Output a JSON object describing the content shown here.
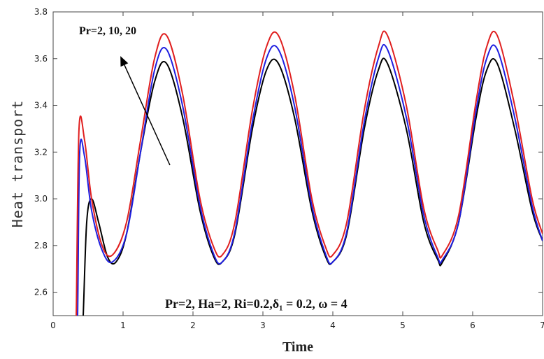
{
  "chart_data": {
    "type": "line",
    "xlabel": "Time",
    "ylabel": "Heat transport",
    "xlim": [
      0,
      7
    ],
    "ylim": [
      2.5,
      3.8
    ],
    "xticks": [
      0,
      1,
      2,
      3,
      4,
      5,
      6,
      7
    ],
    "yticks": [
      2.6,
      2.8,
      3.0,
      3.2,
      3.4,
      3.6,
      3.8
    ],
    "grid": false,
    "annotations": {
      "arrow_label": "Pr=2, 10, 20",
      "params_label": "Pr=2, Ha=2, Ri=0.2,δ₁ = 0.2, ω = 4"
    },
    "series": [
      {
        "color": "#000000",
        "x": [
          0.43,
          0.48,
          0.55,
          0.65,
          0.78,
          0.9,
          1.05,
          1.25,
          1.45,
          1.62,
          1.85,
          2.1,
          2.3,
          2.42,
          2.6,
          2.85,
          3.05,
          3.22,
          3.45,
          3.7,
          3.9,
          4.0,
          4.2,
          4.45,
          4.65,
          4.78,
          5.05,
          5.3,
          5.5,
          5.57,
          5.8,
          6.05,
          6.2,
          6.35,
          6.6,
          6.85,
          7.0
        ],
        "y": [
          2.5,
          2.9,
          3.0,
          2.9,
          2.75,
          2.73,
          2.85,
          3.2,
          3.5,
          3.58,
          3.35,
          2.95,
          2.75,
          2.73,
          2.85,
          3.3,
          3.55,
          3.58,
          3.35,
          2.95,
          2.75,
          2.73,
          2.85,
          3.3,
          3.55,
          3.58,
          3.3,
          2.9,
          2.74,
          2.73,
          2.9,
          3.35,
          3.55,
          3.58,
          3.3,
          2.95,
          2.82
        ]
      },
      {
        "color": "#1f1fe0",
        "x": [
          0.35,
          0.38,
          0.45,
          0.55,
          0.7,
          0.85,
          1.05,
          1.25,
          1.45,
          1.62,
          1.85,
          2.1,
          2.3,
          2.42,
          2.6,
          2.85,
          3.05,
          3.22,
          3.45,
          3.7,
          3.9,
          4.0,
          4.2,
          4.45,
          4.65,
          4.78,
          5.05,
          5.3,
          5.5,
          5.57,
          5.8,
          6.05,
          6.2,
          6.35,
          6.6,
          6.85,
          7.0
        ],
        "y": [
          2.5,
          3.2,
          3.18,
          2.95,
          2.78,
          2.73,
          2.85,
          3.2,
          3.55,
          3.64,
          3.4,
          2.97,
          2.76,
          2.73,
          2.86,
          3.33,
          3.6,
          3.64,
          3.4,
          2.97,
          2.76,
          2.73,
          2.86,
          3.33,
          3.6,
          3.64,
          3.35,
          2.93,
          2.75,
          2.74,
          2.9,
          3.38,
          3.6,
          3.64,
          3.35,
          2.97,
          2.82
        ]
      },
      {
        "color": "#e01f1f",
        "x": [
          0.33,
          0.37,
          0.45,
          0.55,
          0.7,
          0.85,
          1.05,
          1.25,
          1.45,
          1.62,
          1.85,
          2.1,
          2.3,
          2.42,
          2.6,
          2.85,
          3.05,
          3.22,
          3.45,
          3.7,
          3.9,
          4.0,
          4.2,
          4.45,
          4.65,
          4.78,
          5.05,
          5.3,
          5.5,
          5.57,
          5.8,
          6.05,
          6.2,
          6.35,
          6.6,
          6.85,
          7.0
        ],
        "y": [
          2.5,
          3.3,
          3.25,
          3.0,
          2.8,
          2.76,
          2.9,
          3.25,
          3.6,
          3.7,
          3.45,
          3.0,
          2.79,
          2.76,
          2.9,
          3.38,
          3.65,
          3.7,
          3.45,
          3.0,
          2.79,
          2.76,
          2.9,
          3.38,
          3.65,
          3.7,
          3.4,
          2.96,
          2.78,
          2.76,
          2.93,
          3.42,
          3.65,
          3.7,
          3.4,
          3.0,
          2.85
        ]
      }
    ]
  }
}
